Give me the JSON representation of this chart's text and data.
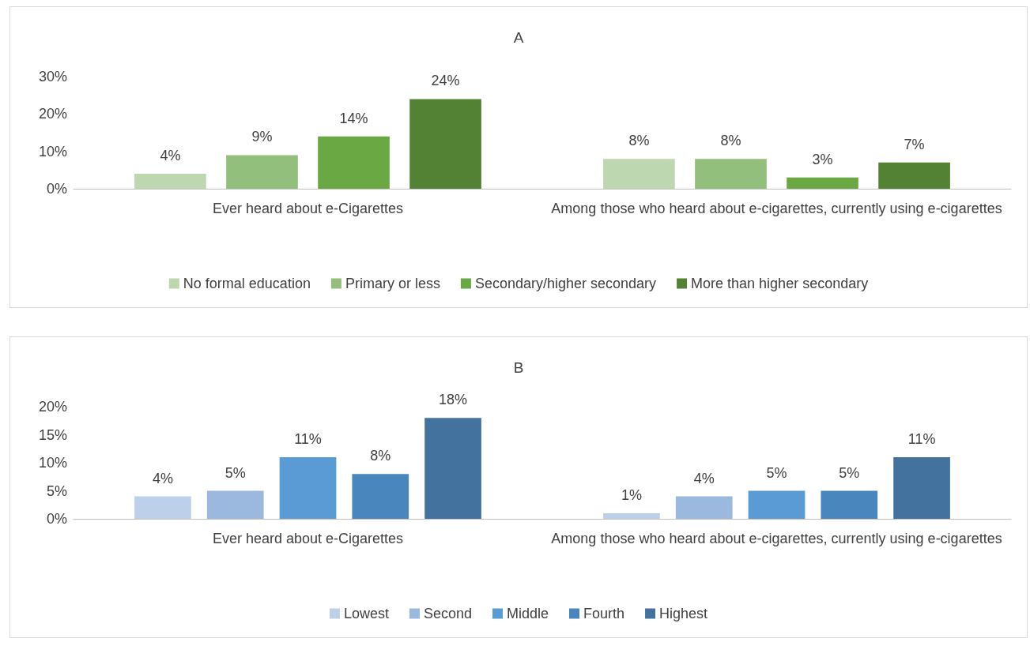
{
  "chart_data": [
    {
      "type": "bar",
      "title": "A",
      "categories": [
        "Ever heard about e-Cigarettes",
        "Among those who heard about e-cigarettes, currently using e-cigarettes"
      ],
      "series": [
        {
          "name": "No formal education",
          "color": "#bdd7b0",
          "values": [
            4,
            8
          ],
          "value_labels": [
            "4%",
            "8%"
          ]
        },
        {
          "name": "Primary or less",
          "color": "#93bf7d",
          "values": [
            9,
            8
          ],
          "value_labels": [
            "9%",
            "8%"
          ]
        },
        {
          "name": "Secondary/higher secondary",
          "color": "#6aa843",
          "values": [
            14,
            3
          ],
          "value_labels": [
            "14%",
            "3%"
          ]
        },
        {
          "name": "More than higher secondary",
          "color": "#548235",
          "values": [
            24,
            7
          ],
          "value_labels": [
            "24%",
            "7%"
          ]
        }
      ],
      "ylim": [
        0,
        30
      ],
      "yticks": [
        {
          "value": 0,
          "label": "0%"
        },
        {
          "value": 10,
          "label": "10%"
        },
        {
          "value": 20,
          "label": "20%"
        },
        {
          "value": 30,
          "label": "30%"
        }
      ],
      "grid": false,
      "legend": "bottom"
    },
    {
      "type": "bar",
      "title": "B",
      "categories": [
        "Ever heard about e-Cigarettes",
        "Among those who heard about e-cigarettes, currently using e-cigarettes"
      ],
      "series": [
        {
          "name": "Lowest",
          "color": "#bdd0ea",
          "values": [
            4,
            1
          ],
          "value_labels": [
            "4%",
            "1%"
          ]
        },
        {
          "name": "Second",
          "color": "#9bb8df",
          "values": [
            5,
            4
          ],
          "value_labels": [
            "5%",
            "4%"
          ]
        },
        {
          "name": "Middle",
          "color": "#5b9bd5",
          "values": [
            11,
            5
          ],
          "value_labels": [
            "11%",
            "5%"
          ]
        },
        {
          "name": "Fourth",
          "color": "#4a86be",
          "values": [
            8,
            5
          ],
          "value_labels": [
            "8%",
            "5%"
          ]
        },
        {
          "name": "Highest",
          "color": "#44729f",
          "values": [
            18,
            11
          ],
          "value_labels": [
            "18%",
            "11%"
          ]
        }
      ],
      "ylim": [
        0,
        20
      ],
      "yticks": [
        {
          "value": 0,
          "label": "0%"
        },
        {
          "value": 5,
          "label": "5%"
        },
        {
          "value": 10,
          "label": "10%"
        },
        {
          "value": 15,
          "label": "15%"
        },
        {
          "value": 20,
          "label": "20%"
        }
      ],
      "grid": false,
      "legend": "bottom"
    }
  ]
}
